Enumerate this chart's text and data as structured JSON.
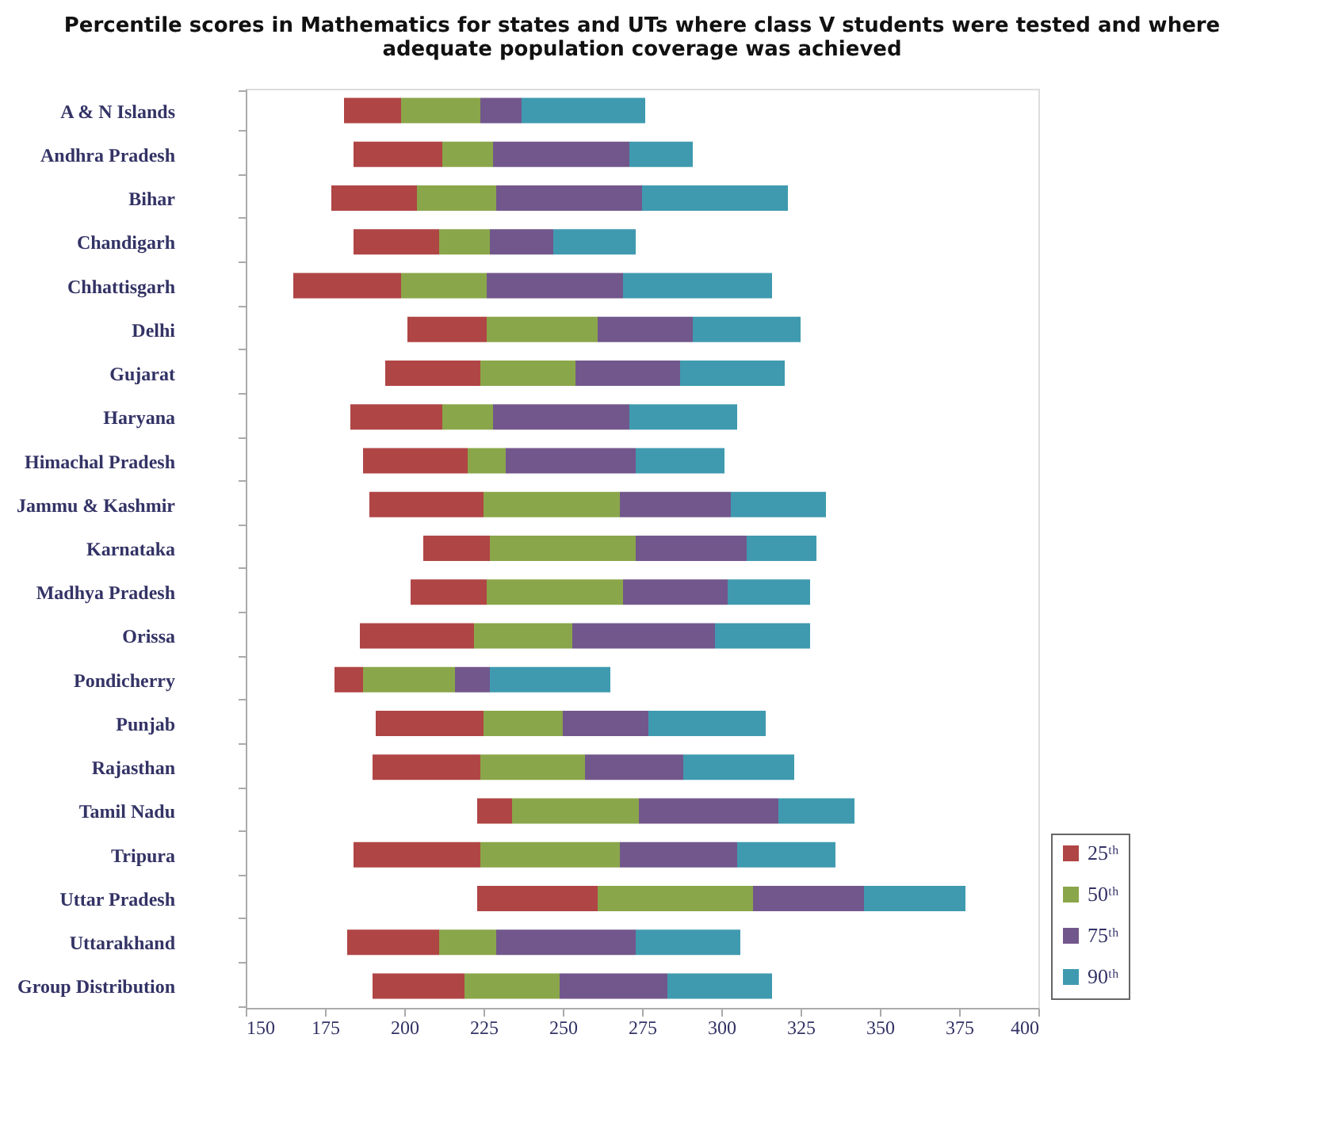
{
  "chart_data": {
    "type": "bar",
    "orientation": "horizontal",
    "title": [
      "Percentile scores in Mathematics for states and UTs where class V students were tested and where",
      "adequate population coverage was achieved"
    ],
    "categories": [
      "A & N Islands",
      "Andhra Pradesh",
      "Bihar",
      "Chandigarh",
      "Chhattisgarh",
      "Delhi",
      "Gujarat",
      "Haryana",
      "Himachal Pradesh",
      "Jammu & Kashmir",
      "Karnataka",
      "Madhya Pradesh",
      "Orissa",
      "Pondicherry",
      "Punjab",
      "Rajasthan",
      "Tamil Nadu",
      "Tripura",
      "Uttar Pradesh",
      "Uttarakhand",
      "Group Distribution"
    ],
    "series": [
      {
        "name": "25ᵗʰ",
        "color": "#b04545",
        "base": [
          181,
          184,
          177,
          184,
          165,
          201,
          194,
          183,
          187,
          189,
          206,
          202,
          186,
          178,
          191,
          190,
          223,
          184,
          223,
          182,
          190
        ],
        "values": [
          18,
          28,
          27,
          27,
          34,
          25,
          30,
          29,
          33,
          36,
          21,
          24,
          36,
          9,
          34,
          34,
          11,
          40,
          38,
          29,
          29
        ]
      },
      {
        "name": "50ᵗʰ",
        "color": "#8aa64a",
        "base": [
          199,
          212,
          204,
          211,
          199,
          226,
          224,
          212,
          220,
          225,
          227,
          226,
          222,
          187,
          225,
          224,
          234,
          224,
          261,
          211,
          219
        ],
        "values": [
          25,
          16,
          25,
          16,
          27,
          35,
          30,
          16,
          12,
          43,
          46,
          43,
          31,
          29,
          25,
          33,
          40,
          44,
          49,
          18,
          30
        ]
      },
      {
        "name": "75ᵗʰ",
        "color": "#72578c",
        "base": [
          224,
          228,
          229,
          227,
          226,
          261,
          254,
          228,
          232,
          268,
          273,
          269,
          253,
          216,
          250,
          257,
          274,
          268,
          310,
          229,
          249
        ],
        "values": [
          13,
          43,
          46,
          20,
          43,
          30,
          33,
          43,
          41,
          35,
          35,
          33,
          45,
          11,
          27,
          31,
          44,
          37,
          35,
          44,
          34
        ]
      },
      {
        "name": "90ᵗʰ",
        "color": "#3f9aaf",
        "base": [
          237,
          271,
          275,
          247,
          269,
          291,
          287,
          271,
          273,
          303,
          308,
          302,
          298,
          227,
          277,
          288,
          318,
          305,
          345,
          273,
          283
        ],
        "values": [
          39,
          20,
          46,
          26,
          47,
          34,
          33,
          34,
          28,
          30,
          22,
          26,
          30,
          38,
          37,
          35,
          24,
          31,
          32,
          33,
          33
        ]
      }
    ],
    "xlim": [
      150,
      400
    ],
    "xticks": [
      150,
      175,
      200,
      225,
      250,
      275,
      300,
      325,
      350,
      375,
      400
    ],
    "grid": false,
    "legend": "bottom right"
  }
}
